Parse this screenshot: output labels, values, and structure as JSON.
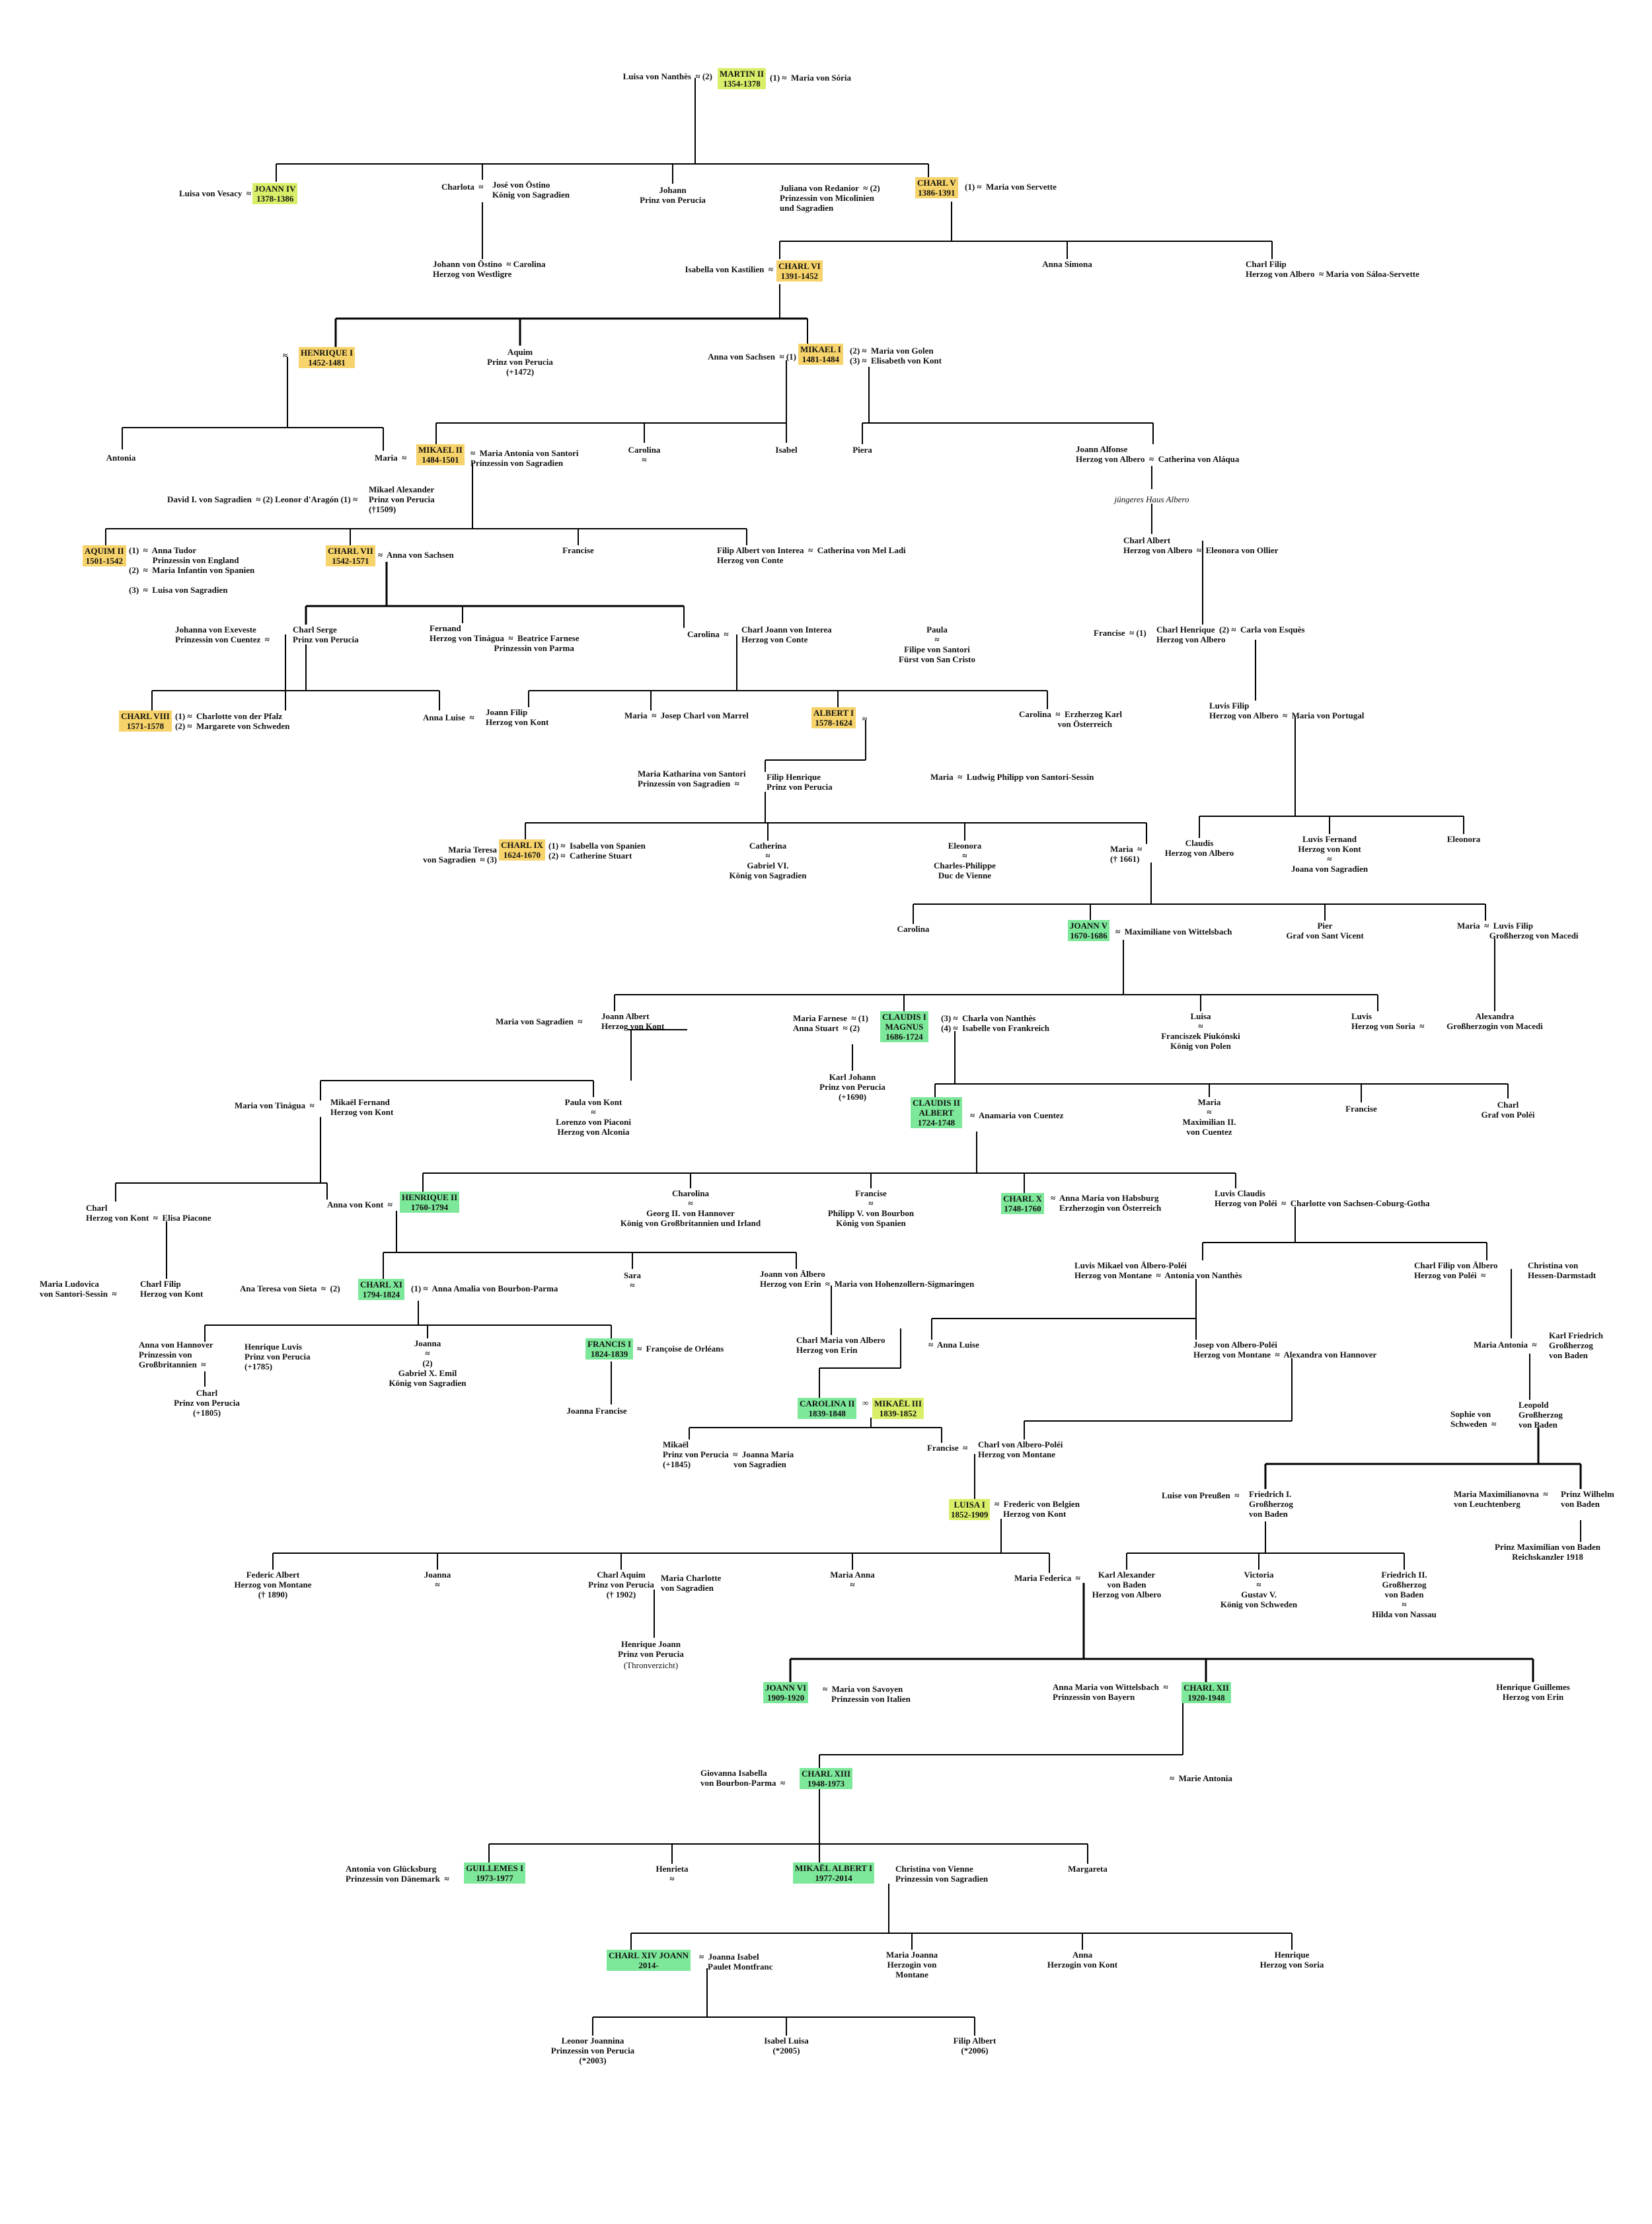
{
  "colors": {
    "old_line": "#f7d36b",
    "albero_line": "#7ee89a",
    "transitional": "#d9ef6a",
    "lines": "#000000"
  },
  "rulers": {
    "martin2": "MARTIN II\n1354-1378",
    "joann4": "JOANN IV\n1378-1386",
    "charl5": "CHARL V\n1386-1391",
    "charl6": "CHARL VI\n1391-1452",
    "henrique1": "HENRIQUE I\n1452-1481",
    "mikael1": "MIKAEL I\n1481-1484",
    "mikael2": "MIKAEL II\n1484-1501",
    "aquim2": "AQUIM II\n1501-1542",
    "charl7": "CHARL VII\n1542-1571",
    "charl8": "CHARL VIII\n1571-1578",
    "albert1": "ALBERT I\n1578-1624",
    "charl9": "CHARL IX\n1624-1670",
    "joann5": "JOANN V\n1670-1686",
    "claudis1": "CLAUDIS I\nMAGNUS\n1686-1724",
    "claudis2": "CLAUDIS II\nALBERT\n1724-1748",
    "henrique2": "HENRIQUE II\n1760-1794",
    "charl10": "CHARL X\n1748-1760",
    "charl11": "CHARL XI\n1794-1824",
    "francis1": "FRANCIS I\n1824-1839",
    "carolina2": "CAROLINA II\n1839-1848",
    "mikael3": "MIKAËL III\n1839-1852",
    "luisa1": "LUISA I\n1852-1909",
    "joann6": "JOANN VI\n1909-1920",
    "charl12": "CHARL XII\n1920-1948",
    "charl13": "CHARL XIII\n1948-1973",
    "guillemes1": "GUILLEMES I\n1973-1977",
    "mikaelalbert1": "MIKAËL ALBERT I\n1977-2014",
    "charl14": "CHARL XIV JOANN\n2014-"
  },
  "people": {
    "p001": "Luisa von Nanthès  ≈ (2)",
    "p002": "(1) ≈  Maria von Sória",
    "p003": "Luisa von Vesacy  ≈",
    "p004": "Charlota  ≈",
    "p005": "José von Östino\nKönig von Sagradien",
    "p006": "Johann\nPrinz von Perucia",
    "p007": "Juliana von Redanior  ≈ (2)\nPrinzessin von Micolinien\nund Sagradien",
    "p008": "(1) ≈  Maria von Servette",
    "p009": "Johann von Östino  ≈ Carolina\nHerzog von Westligre",
    "p010": "Isabella von Kastilien  ≈",
    "p011": "Anna Simona",
    "p012": "Charl Filip\nHerzog von Albero  ≈ Maria von Sáloa-Servette",
    "p013": "≈",
    "p014": "Aquim\nPrinz von Perucia\n(+1472)",
    "p015": "Anna von Sachsen  ≈ (1)",
    "p016": "(2) ≈  Maria von Golen\n(3) ≈  Elisabeth von Kont",
    "p017": "Antonia",
    "p018": "Maria  ≈",
    "p019": "≈  Maria Antonia von Santori\nPrinzessin von Sagradien",
    "p020": "Carolina\n≈",
    "p021": "Isabel",
    "p022": "Piera",
    "p023": "Joann Alfonse\nHerzog von Albero  ≈  Catherina von Aláqua",
    "p024": "David I. von Sagradien  ≈ (2) Leonor d'Aragón (1) ≈",
    "p025": "Mikael Alexander\nPrinz von Perucia\n(†1509)",
    "p026": "jüngeres Haus Albero",
    "p027": "(1)  ≈  Anna Tudor\n           Prinzessin von England\n(2)  ≈  Maria Infantin von Spanien\n\n(3)  ≈  Luisa von Sagradien",
    "p028": "≈  Anna von Sachsen",
    "p029": "Francise",
    "p030": "Filip Albert von Interea  ≈  Catherina von Mel Ladi\nHerzog von Conte",
    "p031": "Charl Albert\nHerzog von Albero  ≈  Eleonora von Ollier",
    "p032": "Johanna von Exeveste\nPrinzessin von Cuentez  ≈",
    "p033": "Charl Serge\nPrinz von Perucia",
    "p034": "Fernand\nHerzog von Tinágua  ≈  Beatrice Farnese\n                              Prinzessin von Parma",
    "p035": "Carolina  ≈",
    "p036": "Charl Joann von Interea\nHerzog von Conte",
    "p037": "Paula\n≈\nFilipe von Santori\nFürst von San Cristo",
    "p038": "Francise  ≈ (1)",
    "p039": "Charl Henrique  (2) ≈  Carla von Esquès\nHerzog von Albero",
    "p040": "(1) ≈  Charlotte von der Pfalz\n(2) ≈  Margarete von Schweden",
    "p041": "Anna Luise  ≈",
    "p042": "Joann Filip\nHerzog von Kont",
    "p043": "Maria  ≈  Josep Charl von Marrel",
    "p044": "≈",
    "p045": "Carolina  ≈  Erzherzog Karl\n                  von Österreich",
    "p046": "Luvis Filip\nHerzog von Albero  ≈  Maria von Portugal",
    "p047": "Maria Katharina von Santori\nPrinzessin von Sagradien  ≈",
    "p048": "Filip Henrique\nPrinz von Perucia",
    "p049": "Maria  ≈  Ludwig Philipp von Santori-Sessin",
    "p050": "Maria Teresa\nvon Sagradien  ≈ (3)",
    "p051": "(1) ≈  Isabella von Spanien\n(2) ≈  Catherine Stuart",
    "p052": "Catherina\n≈\nGabriel VI.\nKönig von Sagradien",
    "p053": "Eleonora\n≈\nCharles-Philippe\nDuc de Vienne",
    "p054": "Maria  ≈\n(† 1661)",
    "p055": "Claudis\nHerzog von Albero",
    "p056": "Luvis Fernand\nHerzog von Kont\n≈\nJoana von Sagradien",
    "p057": "Eleonora",
    "p058": "Carolina",
    "p059": "≈  Maximiliane von Wittelsbach",
    "p060": "Pier\nGraf von Sant Vicent",
    "p061": "Maria  ≈  Luvis Filip\n               Großherzog von Macedi",
    "p062": "Maria von Sagradien  ≈",
    "p063": "Joann Albert\nHerzog von Kont",
    "p064": "Maria Farnese  ≈ (1)\nAnna Stuart  ≈ (2)",
    "p065": "(3) ≈  Charla von Nanthès\n(4) ≈  Isabelle von Frankreich",
    "p066": "Luisa\n≈\nFranciszek Piukónski\nKönig von Polen",
    "p067": "Luvis\nHerzog von Soria  ≈",
    "p068": "Alexandra\nGroßherzogin von Macedi",
    "p069": "Karl Johann\nPrinz von Perucia\n(+1690)",
    "p070": "Maria von Tinágua  ≈",
    "p071": "Mikaël Fernand\nHerzog von Kont",
    "p072": "Paula von Kont\n≈\nLorenzo von Piaconi\nHerzog von Alconia",
    "p073": "≈  Anamaria von Cuentez",
    "p074": "Maria\n≈\nMaximilian II.\nvon Cuentez",
    "p075": "Francise",
    "p076": "Charl\nGraf von Poléi",
    "p077": "Charl\nHerzog von Kont  ≈  Elisa Piacone",
    "p078": "Anna von Kont  ≈",
    "p079": "Charolina\n≈\nGeorg II. von Hannover\nKönig von Großbritannien und Irland",
    "p080": "Francise\n≈\nPhilipp V. von Bourbon\nKönig von Spanien",
    "p081": "≈  Anna Maria von Habsburg\n    Erzherzogin von Österreich",
    "p082": "Luvis Claudis\nHerzog von Poléi  ≈  Charlotte von Sachsen-Coburg-Gotha",
    "p083": "Maria Ludovica\nvon Santori-Sessin  ≈",
    "p084": "Charl Filip\nHerzog von Kont",
    "p085": "Ana Teresa von Sieta  ≈  (2)",
    "p086": "(1) ≈  Anna Amalia von Bourbon-Parma",
    "p087": "Sara\n≈",
    "p088": "Joann von Älbero\nHerzog von Erin  ≈  Maria von Hohenzollern-Sigmaringen",
    "p089": "Luvis Mikael von Älbero-Poléi\nHerzog von Montane  ≈  Antonia von Nanthès",
    "p090": "Charl Filip von Älbero\nHerzog von Poléi  ≈",
    "p091": "Christina von\nHessen-Darmstadt",
    "p092": "Anna von Hannover\nPrinzessin von\nGroßbritannien  ≈",
    "p093": "Henrique Luvis\nPrinz von Perucia\n(+1785)",
    "p094": "Charl\nPrinz von Perucia\n(+1805)",
    "p095": "Joanna\n≈\n(2)\nGabriel X. Emil\nKönig von Sagradien",
    "p096": "≈  Françoise de Orléans",
    "p097": "Joanna Francise",
    "p098": "Charl Maria von Albero\nHerzog von Erin",
    "p099": "≈  Anna Luise",
    "p100": "Josep von Albero-Poléi\nHerzog von Montane  ≈  Alexandra von Hannover",
    "p101": "Maria Antonia  ≈",
    "p102": "Karl Friedrich\nGroßherzog\nvon Baden",
    "p103": "Sophie von\nSchweden  ≈",
    "p104": "Leopold\nGroßherzog\nvon Baden",
    "p105": "∞",
    "p106": "Mikaël\nPrinz von Perucia  ≈  Joanna Maria\n(+1845)                    von Sagradien",
    "p107": "Francise  ≈",
    "p108": "Charl von Albero-Poléi\nHerzog von Montane",
    "p109": "Luise von Preußen  ≈",
    "p110": "Friedrich I.\nGroßherzog\nvon Baden",
    "p111": "Maria Maximilianovna  ≈\nvon Leuchtenberg",
    "p112": "Prinz Wilhelm\nvon Baden",
    "p113": "Prinz Maximilian von Baden\nReichskanzler 1918",
    "p114": "≈  Frederic von Belgien\n    Herzog von Kont",
    "p115": "Federic Albert\nHerzog von Montane\n(† 1890)",
    "p116": "Joanna\n≈",
    "p117": "Charl Aquim\nPrinz von Perucia\n(† 1902)",
    "p118": "Maria Charlotte\nvon Sagradien",
    "p119": "Maria Anna\n≈",
    "p120": "Maria Federica  ≈",
    "p121": "Karl Alexander\nvon Baden\nHerzog von Albero",
    "p122": "Victoria\n≈\nGustav V.\nKönig von Schweden",
    "p123": "Friedrich II.\nGroßherzog\nvon Baden\n≈\nHilda von Nassau",
    "p124": "Henrique Joann\nPrinz von Perucia",
    "p125": "(Thronverzicht)",
    "p126": "≈  Maria von Savoyen\n    Prinzessin von Italien",
    "p127": "Anna Maria von Wittelsbach  ≈\nPrinzessin von Bayern",
    "p128": "Henrique Guillemes\nHerzog von Erin",
    "p129": "Giovanna Isabella\nvon Bourbon-Parma  ≈",
    "p130": "≈  Marie Antonia",
    "p131": "Antonia von Glücksburg\nPrinzessin von Dänemark  ≈",
    "p132": "Henrieta\n≈",
    "p133": "Christina von Vienne\nPrinzessin von Sagradien",
    "p134": "Margareta",
    "p135": "≈  Joanna Isabel\n    Paulet Montfranc",
    "p136": "Maria Joanna\nHerzogin von\nMontane",
    "p137": "Anna\nHerzogin von Kont",
    "p138": "Henrique\nHerzog von Soria",
    "p139": "Leonor Joannina\nPrinzessin von Perucia\n(*2003)",
    "p140": "Isabel Luisa\n(*2005)",
    "p141": "Filip Albert\n(*2006)"
  }
}
